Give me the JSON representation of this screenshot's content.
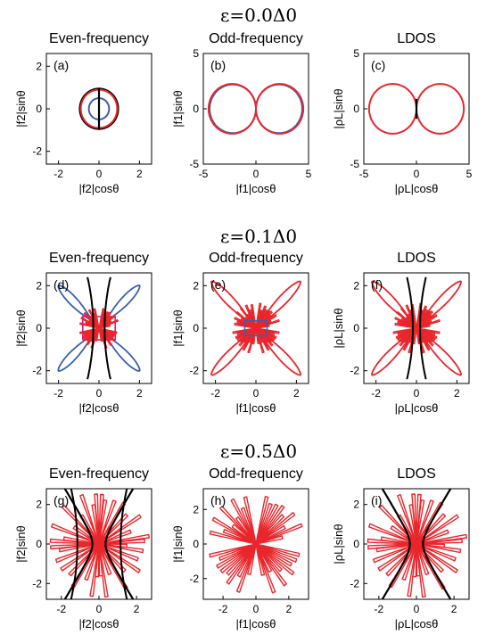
{
  "row_titles": [
    "ε=0.0Δ0",
    "ε=0.1Δ0",
    "ε=0.5Δ0"
  ],
  "colors": {
    "red": "#e8262b",
    "blue": "#3a5fb0",
    "black": "#000000",
    "magenta": "#c8208c"
  },
  "chart_data": [
    {
      "type": "line",
      "label": "(a)",
      "title": "Even-frequency",
      "xlabel": "|f2|cosθ",
      "ylabel": "|f2|sinθ",
      "xlim": [
        -2.6,
        2.6
      ],
      "ylim": [
        -2.6,
        2.6
      ],
      "xticks": [
        -2,
        0,
        2
      ],
      "yticks": [
        -2,
        0,
        2
      ],
      "series": [
        {
          "color": "black",
          "shape": "circle",
          "radius": 0.95
        },
        {
          "color": "red",
          "shape": "circle",
          "radius": 0.9
        },
        {
          "color": "blue",
          "shape": "circle",
          "radius": 0.5
        },
        {
          "color": "black",
          "shape": "vline",
          "ymin": -0.95,
          "ymax": 0.95
        }
      ]
    },
    {
      "type": "line",
      "label": "(b)",
      "title": "Odd-frequency",
      "xlabel": "|f1|cosθ",
      "ylabel": "|f1|sinθ",
      "xlim": [
        -5,
        5
      ],
      "ylim": [
        -5,
        5
      ],
      "xticks": [
        -5,
        0,
        5
      ],
      "yticks": [
        -5,
        0,
        5
      ],
      "series": [
        {
          "color": "blue",
          "shape": "two-lobe",
          "a": 4.4
        },
        {
          "color": "red",
          "shape": "two-lobe",
          "a": 4.5
        }
      ]
    },
    {
      "type": "line",
      "label": "(c)",
      "title": "LDOS",
      "xlabel": "|ρL|cosθ",
      "ylabel": "|ρL|sinθ",
      "xlim": [
        -5,
        5
      ],
      "ylim": [
        -5,
        5
      ],
      "xticks": [
        -5,
        0,
        5
      ],
      "yticks": [
        -5,
        0,
        5
      ],
      "series": [
        {
          "color": "red",
          "shape": "two-lobe",
          "a": 4.5
        },
        {
          "color": "black",
          "shape": "vline",
          "ymin": -0.9,
          "ymax": 0.9
        }
      ]
    },
    {
      "type": "line",
      "label": "(d)",
      "title": "Even-frequency",
      "xlabel": "|f2|cosθ",
      "ylabel": "|f2|sinθ",
      "xlim": [
        -2.6,
        2.6
      ],
      "ylim": [
        -2.6,
        2.6
      ],
      "xticks": [
        -2,
        0,
        2
      ],
      "yticks": [
        -2,
        0,
        2
      ],
      "series": [
        {
          "color": "blue",
          "shape": "x-lobes",
          "a": 2.1,
          "spread": 0.28,
          "core": 0.45
        },
        {
          "color": "magenta",
          "shape": "rect",
          "xmin": -0.8,
          "xmax": 0.8,
          "ymin": -0.55,
          "ymax": 0.55
        },
        {
          "color": "red",
          "shape": "spikes",
          "r": 1.0,
          "n": 9,
          "spread": 0.55
        },
        {
          "color": "black",
          "shape": "vbranches",
          "x0": 0.28,
          "h": 2.4
        }
      ]
    },
    {
      "type": "line",
      "label": "(e)",
      "title": "Odd-frequency",
      "xlabel": "|f1|cosθ",
      "ylabel": "|f1|sinθ",
      "xlim": [
        -2.6,
        2.6
      ],
      "ylim": [
        -2.6,
        2.6
      ],
      "xticks": [
        -2,
        0,
        2
      ],
      "yticks": [
        -2,
        0,
        2
      ],
      "series": [
        {
          "color": "red",
          "shape": "x-lobes",
          "a": 2.3,
          "spread": 0.3,
          "core": 0.2
        },
        {
          "color": "red",
          "shape": "spikes",
          "r": 1.2,
          "n": 11,
          "spread": 0.6
        },
        {
          "color": "blue",
          "shape": "rect",
          "xmin": -0.55,
          "xmax": 0.55,
          "ymin": -0.35,
          "ymax": 0.35
        }
      ]
    },
    {
      "type": "line",
      "label": "(f)",
      "title": "LDOS",
      "xlabel": "|ρL|cosθ",
      "ylabel": "|ρL|sinθ",
      "xlim": [
        -2.6,
        2.6
      ],
      "ylim": [
        -2.6,
        2.6
      ],
      "xticks": [
        -2,
        0,
        2
      ],
      "yticks": [
        -2,
        0,
        2
      ],
      "series": [
        {
          "color": "red",
          "shape": "x-lobes",
          "a": 2.3,
          "spread": 0.3,
          "core": 0.2
        },
        {
          "color": "red",
          "shape": "spikes",
          "r": 1.2,
          "n": 11,
          "spread": 0.6
        },
        {
          "color": "black",
          "shape": "vbranches",
          "x0": 0.18,
          "h": 2.4
        }
      ]
    },
    {
      "type": "line",
      "label": "(g)",
      "title": "Even-frequency",
      "xlabel": "|f2|cosθ",
      "ylabel": "|f2|sinθ",
      "xlim": [
        -2.8,
        2.8
      ],
      "ylim": [
        -2.8,
        2.8
      ],
      "xticks": [
        -2,
        0,
        2
      ],
      "yticks": [
        -2,
        0,
        2
      ],
      "series": [
        {
          "color": "red",
          "shape": "spikes",
          "r": 2.7,
          "n": 9,
          "spread": 0.85
        },
        {
          "color": "black",
          "shape": "hyperbola",
          "a": 0.35,
          "b": 0.55
        },
        {
          "color": "black",
          "shape": "vbranches",
          "x0": 1.15,
          "h": 2.8
        }
      ]
    },
    {
      "type": "line",
      "label": "(h)",
      "title": "Odd-frequency",
      "xlabel": "|f1|cosθ",
      "ylabel": "|f1|sinθ",
      "xlim": [
        -3.2,
        3.2
      ],
      "ylim": [
        -3.2,
        3.2
      ],
      "xticks": [
        -2,
        0,
        2
      ],
      "yticks": [
        -2,
        0,
        2
      ],
      "series": [
        {
          "color": "red",
          "shape": "spikes",
          "r": 3.0,
          "n": 9,
          "spread": 0.55
        }
      ]
    },
    {
      "type": "line",
      "label": "(i)",
      "title": "LDOS",
      "xlabel": "|ρL|cosθ",
      "ylabel": "|ρL|sinθ",
      "xlim": [
        -2.8,
        2.8
      ],
      "ylim": [
        -2.8,
        2.8
      ],
      "xticks": [
        -2,
        0,
        2
      ],
      "yticks": [
        -2,
        0,
        2
      ],
      "series": [
        {
          "color": "red",
          "shape": "spikes",
          "r": 2.7,
          "n": 9,
          "spread": 0.85
        },
        {
          "color": "black",
          "shape": "hyperbola",
          "a": 0.35,
          "b": 0.55
        }
      ]
    }
  ]
}
